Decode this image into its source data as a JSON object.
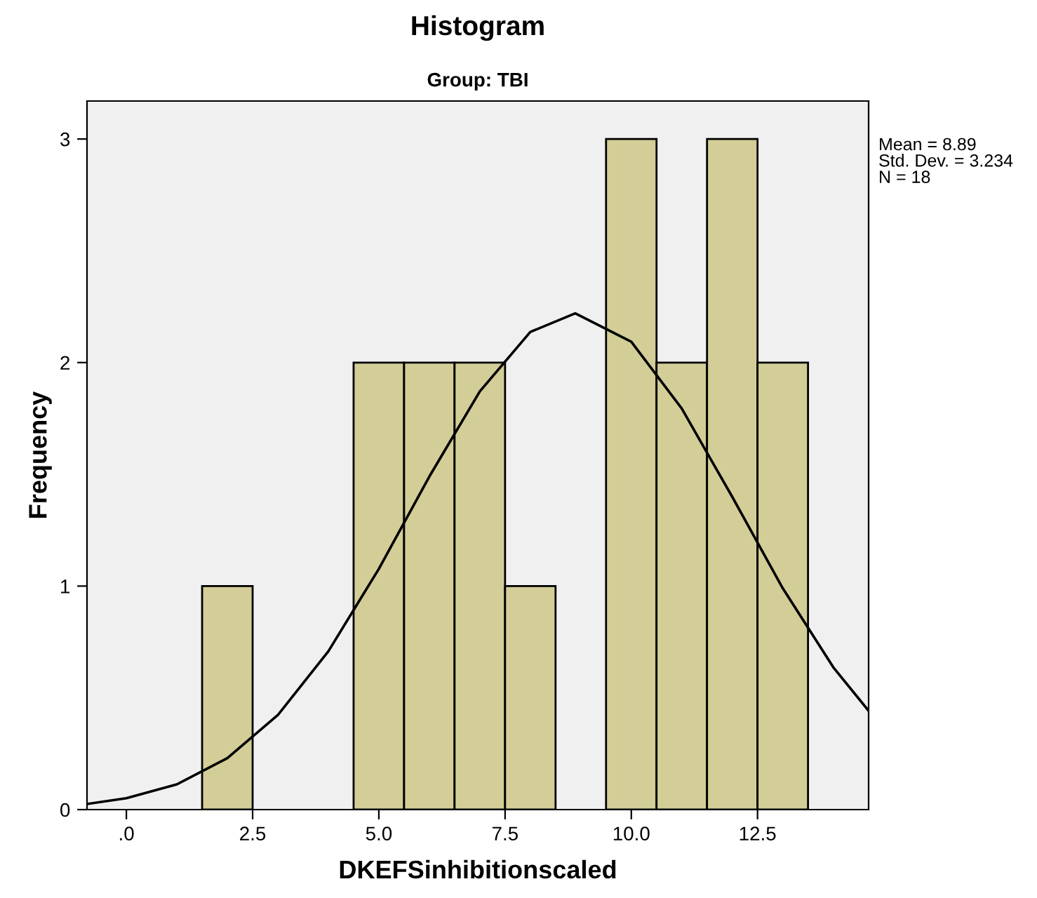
{
  "chart_data": {
    "type": "histogram",
    "title": "Histogram",
    "subtitle": "Group: TBI",
    "xlabel": "DKEFSinhibitionscaled",
    "ylabel": "Frequency",
    "bins": [
      1.5,
      2.5,
      3.5,
      4.5,
      5.5,
      6.5,
      7.5,
      8.5,
      9.5,
      10.5,
      11.5,
      12.5,
      13.5
    ],
    "values": [
      1,
      0,
      0,
      2,
      2,
      2,
      1,
      0,
      3,
      2,
      3,
      2
    ],
    "color": "#d3ce97",
    "series": [
      {
        "type": "line",
        "color": "#000000",
        "x": [
          -0.78,
          0,
          1,
          2,
          3,
          4,
          5,
          6,
          7,
          8,
          8.89,
          10,
          11,
          12,
          13,
          14,
          14.7
        ],
        "values": [
          0.025,
          0.051,
          0.113,
          0.23,
          0.423,
          0.708,
          1.077,
          1.49,
          1.871,
          2.137,
          2.22,
          2.093,
          1.794,
          1.399,
          0.99,
          0.637,
          0.442
        ]
      }
    ],
    "xlim": [
      -0.78,
      14.7
    ],
    "ylim": [
      0,
      3.17
    ],
    "xticks": [
      {
        "value": 0,
        "label": ".0"
      },
      {
        "value": 2.5,
        "label": "2.5"
      },
      {
        "value": 5,
        "label": "5.0"
      },
      {
        "value": 7.5,
        "label": "7.5"
      },
      {
        "value": 10,
        "label": "10.0"
      },
      {
        "value": 12.5,
        "label": "12.5"
      }
    ],
    "yticks": [
      0,
      1,
      2,
      3
    ],
    "grid": false,
    "legend": false,
    "annotations": [
      "Mean = 8.89\nStd. Dev. = 3.234\nN = 18"
    ]
  }
}
